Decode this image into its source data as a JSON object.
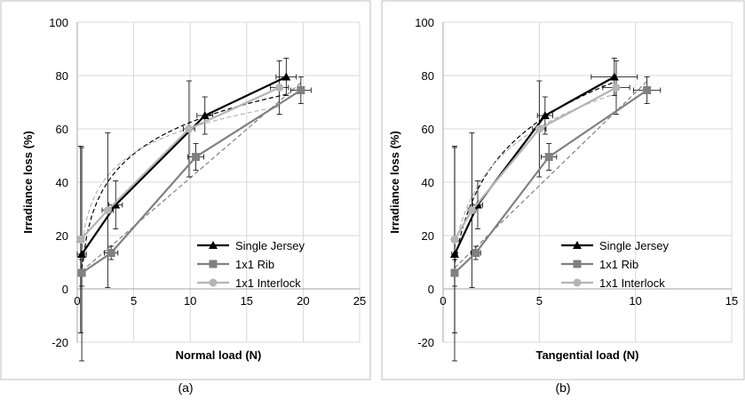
{
  "colors": {
    "single_jersey": "#000000",
    "rib": "#808080",
    "interlock": "#b4b4b4",
    "grid": "#d9d9d9",
    "frame": "#bfbfbf",
    "axis_text": "#000000",
    "error_bar": "#000000"
  },
  "chart_data": [
    {
      "type": "scatter",
      "caption": "(a)",
      "xlabel": "Normal load (N)",
      "ylabel": "Irradiance loss (%)",
      "xlim": [
        0,
        25
      ],
      "ylim": [
        -20,
        100
      ],
      "xticks": [
        0,
        5,
        10,
        15,
        20,
        25
      ],
      "yticks": [
        -20,
        0,
        20,
        40,
        60,
        80,
        100
      ],
      "grid": true,
      "legend_position": "lower-right",
      "series": [
        {
          "name": "Single Jersey",
          "marker": "triangle",
          "color_key": "single_jersey",
          "x": [
            0.4,
            3.4,
            11.3,
            18.5
          ],
          "y": [
            13,
            31.5,
            65,
            79.5
          ],
          "x_err": [
            0.4,
            0.6,
            0.7,
            0.9
          ],
          "y_err": [
            40,
            9,
            7,
            7
          ],
          "trend": {
            "type": "log",
            "dash": true
          }
        },
        {
          "name": "1x1 Rib",
          "marker": "square",
          "color_key": "rib",
          "x": [
            0.4,
            3.0,
            10.5,
            19.8
          ],
          "y": [
            6,
            13.5,
            49.5,
            74.5
          ],
          "x_err": [
            0.3,
            0.6,
            0.7,
            0.9
          ],
          "y_err": [
            5,
            2.5,
            5,
            5
          ],
          "trend": {
            "type": "linear",
            "dash": true
          }
        },
        {
          "name": "1x1 Interlock",
          "marker": "circle",
          "color_key": "interlock",
          "x": [
            0.3,
            2.7,
            9.9,
            17.9
          ],
          "y": [
            18.5,
            29.5,
            60,
            75.5
          ],
          "x_err": [
            0.3,
            0.5,
            0.5,
            0.8
          ],
          "y_err": [
            35,
            29,
            18,
            10
          ],
          "trend": {
            "type": "log",
            "dash": true
          }
        }
      ]
    },
    {
      "type": "scatter",
      "caption": "(b)",
      "xlabel": "Tangential load (N)",
      "ylabel": "Irradiance loss (%)",
      "xlim": [
        0,
        15
      ],
      "ylim": [
        -20,
        100
      ],
      "xticks": [
        0,
        5,
        10,
        15
      ],
      "yticks": [
        -20,
        0,
        20,
        40,
        60,
        80,
        100
      ],
      "grid": true,
      "legend_position": "lower-right",
      "series": [
        {
          "name": "Single Jersey",
          "marker": "triangle",
          "color_key": "single_jersey",
          "x": [
            0.6,
            1.8,
            5.3,
            8.9
          ],
          "y": [
            13,
            31.5,
            65,
            79.5
          ],
          "x_err": [
            0.15,
            0.25,
            0.4,
            1.2
          ],
          "y_err": [
            40,
            9,
            7,
            7
          ],
          "trend": {
            "type": "log",
            "dash": true
          }
        },
        {
          "name": "1x1 Rib",
          "marker": "square",
          "color_key": "rib",
          "x": [
            0.6,
            1.7,
            5.5,
            10.6
          ],
          "y": [
            6,
            13.5,
            49.5,
            74.5
          ],
          "x_err": [
            0.15,
            0.25,
            0.4,
            0.7
          ],
          "y_err": [
            5,
            2.5,
            5,
            5
          ],
          "trend": {
            "type": "linear",
            "dash": true
          }
        },
        {
          "name": "1x1 Interlock",
          "marker": "circle",
          "color_key": "interlock",
          "x": [
            0.6,
            1.5,
            5.0,
            9.0
          ],
          "y": [
            18.5,
            29.5,
            60,
            75.5
          ],
          "x_err": [
            0.15,
            0.2,
            0.35,
            0.7
          ],
          "y_err": [
            35,
            29,
            18,
            10
          ],
          "trend": {
            "type": "log",
            "dash": true
          }
        }
      ]
    }
  ]
}
